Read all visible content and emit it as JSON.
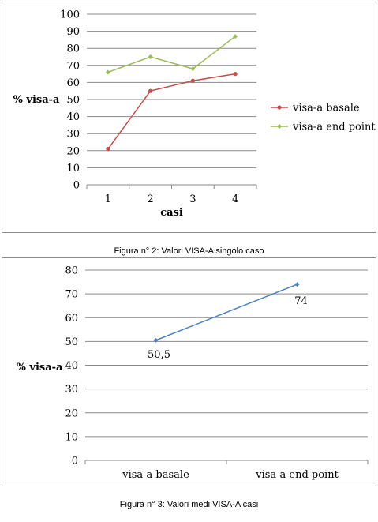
{
  "chart_data": [
    {
      "type": "line",
      "caption": "Figura n° 2: Valori VISA-A singolo caso",
      "xlabel": "casi",
      "ylabel": "% visa-a",
      "categories": [
        "1",
        "2",
        "3",
        "4"
      ],
      "ylim": [
        0,
        100
      ],
      "yticks": [
        "0",
        "10",
        "20",
        "30",
        "40",
        "50",
        "60",
        "70",
        "80",
        "90",
        "100"
      ],
      "grid": true,
      "legend_position": "right",
      "series": [
        {
          "name": "visa-a basale",
          "values": [
            21,
            55,
            61,
            65
          ],
          "color": "#c0504d",
          "marker": "circle"
        },
        {
          "name": "visa-a end point",
          "values": [
            66,
            75,
            68,
            87
          ],
          "color": "#9bbb59",
          "marker": "diamond"
        }
      ]
    },
    {
      "type": "line",
      "caption": "Figura n° 3: Valori medi VISA-A casi",
      "xlabel": "",
      "ylabel": "% visa-a",
      "categories": [
        "visa-a basale",
        "visa-a end point"
      ],
      "ylim": [
        0,
        80
      ],
      "yticks": [
        "0",
        "10",
        "20",
        "30",
        "40",
        "50",
        "60",
        "70",
        "80"
      ],
      "grid": true,
      "series": [
        {
          "values": [
            50.5,
            74
          ],
          "color": "#4f81bd",
          "marker": "diamond",
          "data_labels": [
            "50,5",
            "74"
          ]
        }
      ]
    }
  ]
}
